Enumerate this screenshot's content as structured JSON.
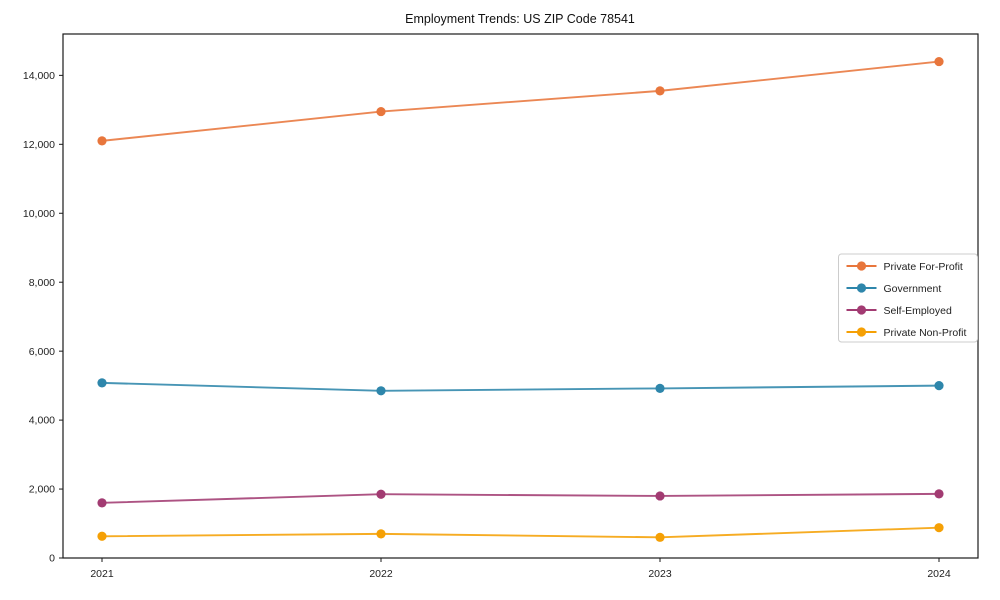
{
  "chart_data": {
    "type": "line",
    "title": "Employment Trends: US ZIP Code 78541",
    "x": [
      "2021",
      "2022",
      "2023",
      "2024"
    ],
    "series": [
      {
        "name": "Private For-Profit",
        "color": "#E8763C",
        "values": [
          12100,
          12950,
          13550,
          14400
        ]
      },
      {
        "name": "Government",
        "color": "#2E86AB",
        "values": [
          5080,
          4850,
          4920,
          5000
        ]
      },
      {
        "name": "Self-Employed",
        "color": "#A23B72",
        "values": [
          1600,
          1850,
          1800,
          1860
        ]
      },
      {
        "name": "Private Non-Profit",
        "color": "#F5A005",
        "values": [
          630,
          700,
          600,
          880
        ]
      }
    ],
    "xlabel": "",
    "ylabel": "",
    "ylim": [
      0,
      15200
    ],
    "ytick_step": 2000,
    "ytick_labels": [
      "0",
      "2,000",
      "4,000",
      "6,000",
      "8,000",
      "10,000",
      "12,000",
      "14,000"
    ],
    "grid": false,
    "legend_position": "right-inside",
    "legend_border_color": "#cccccc",
    "axis_color": "#1a1a1a",
    "background_color": "#ffffff"
  }
}
